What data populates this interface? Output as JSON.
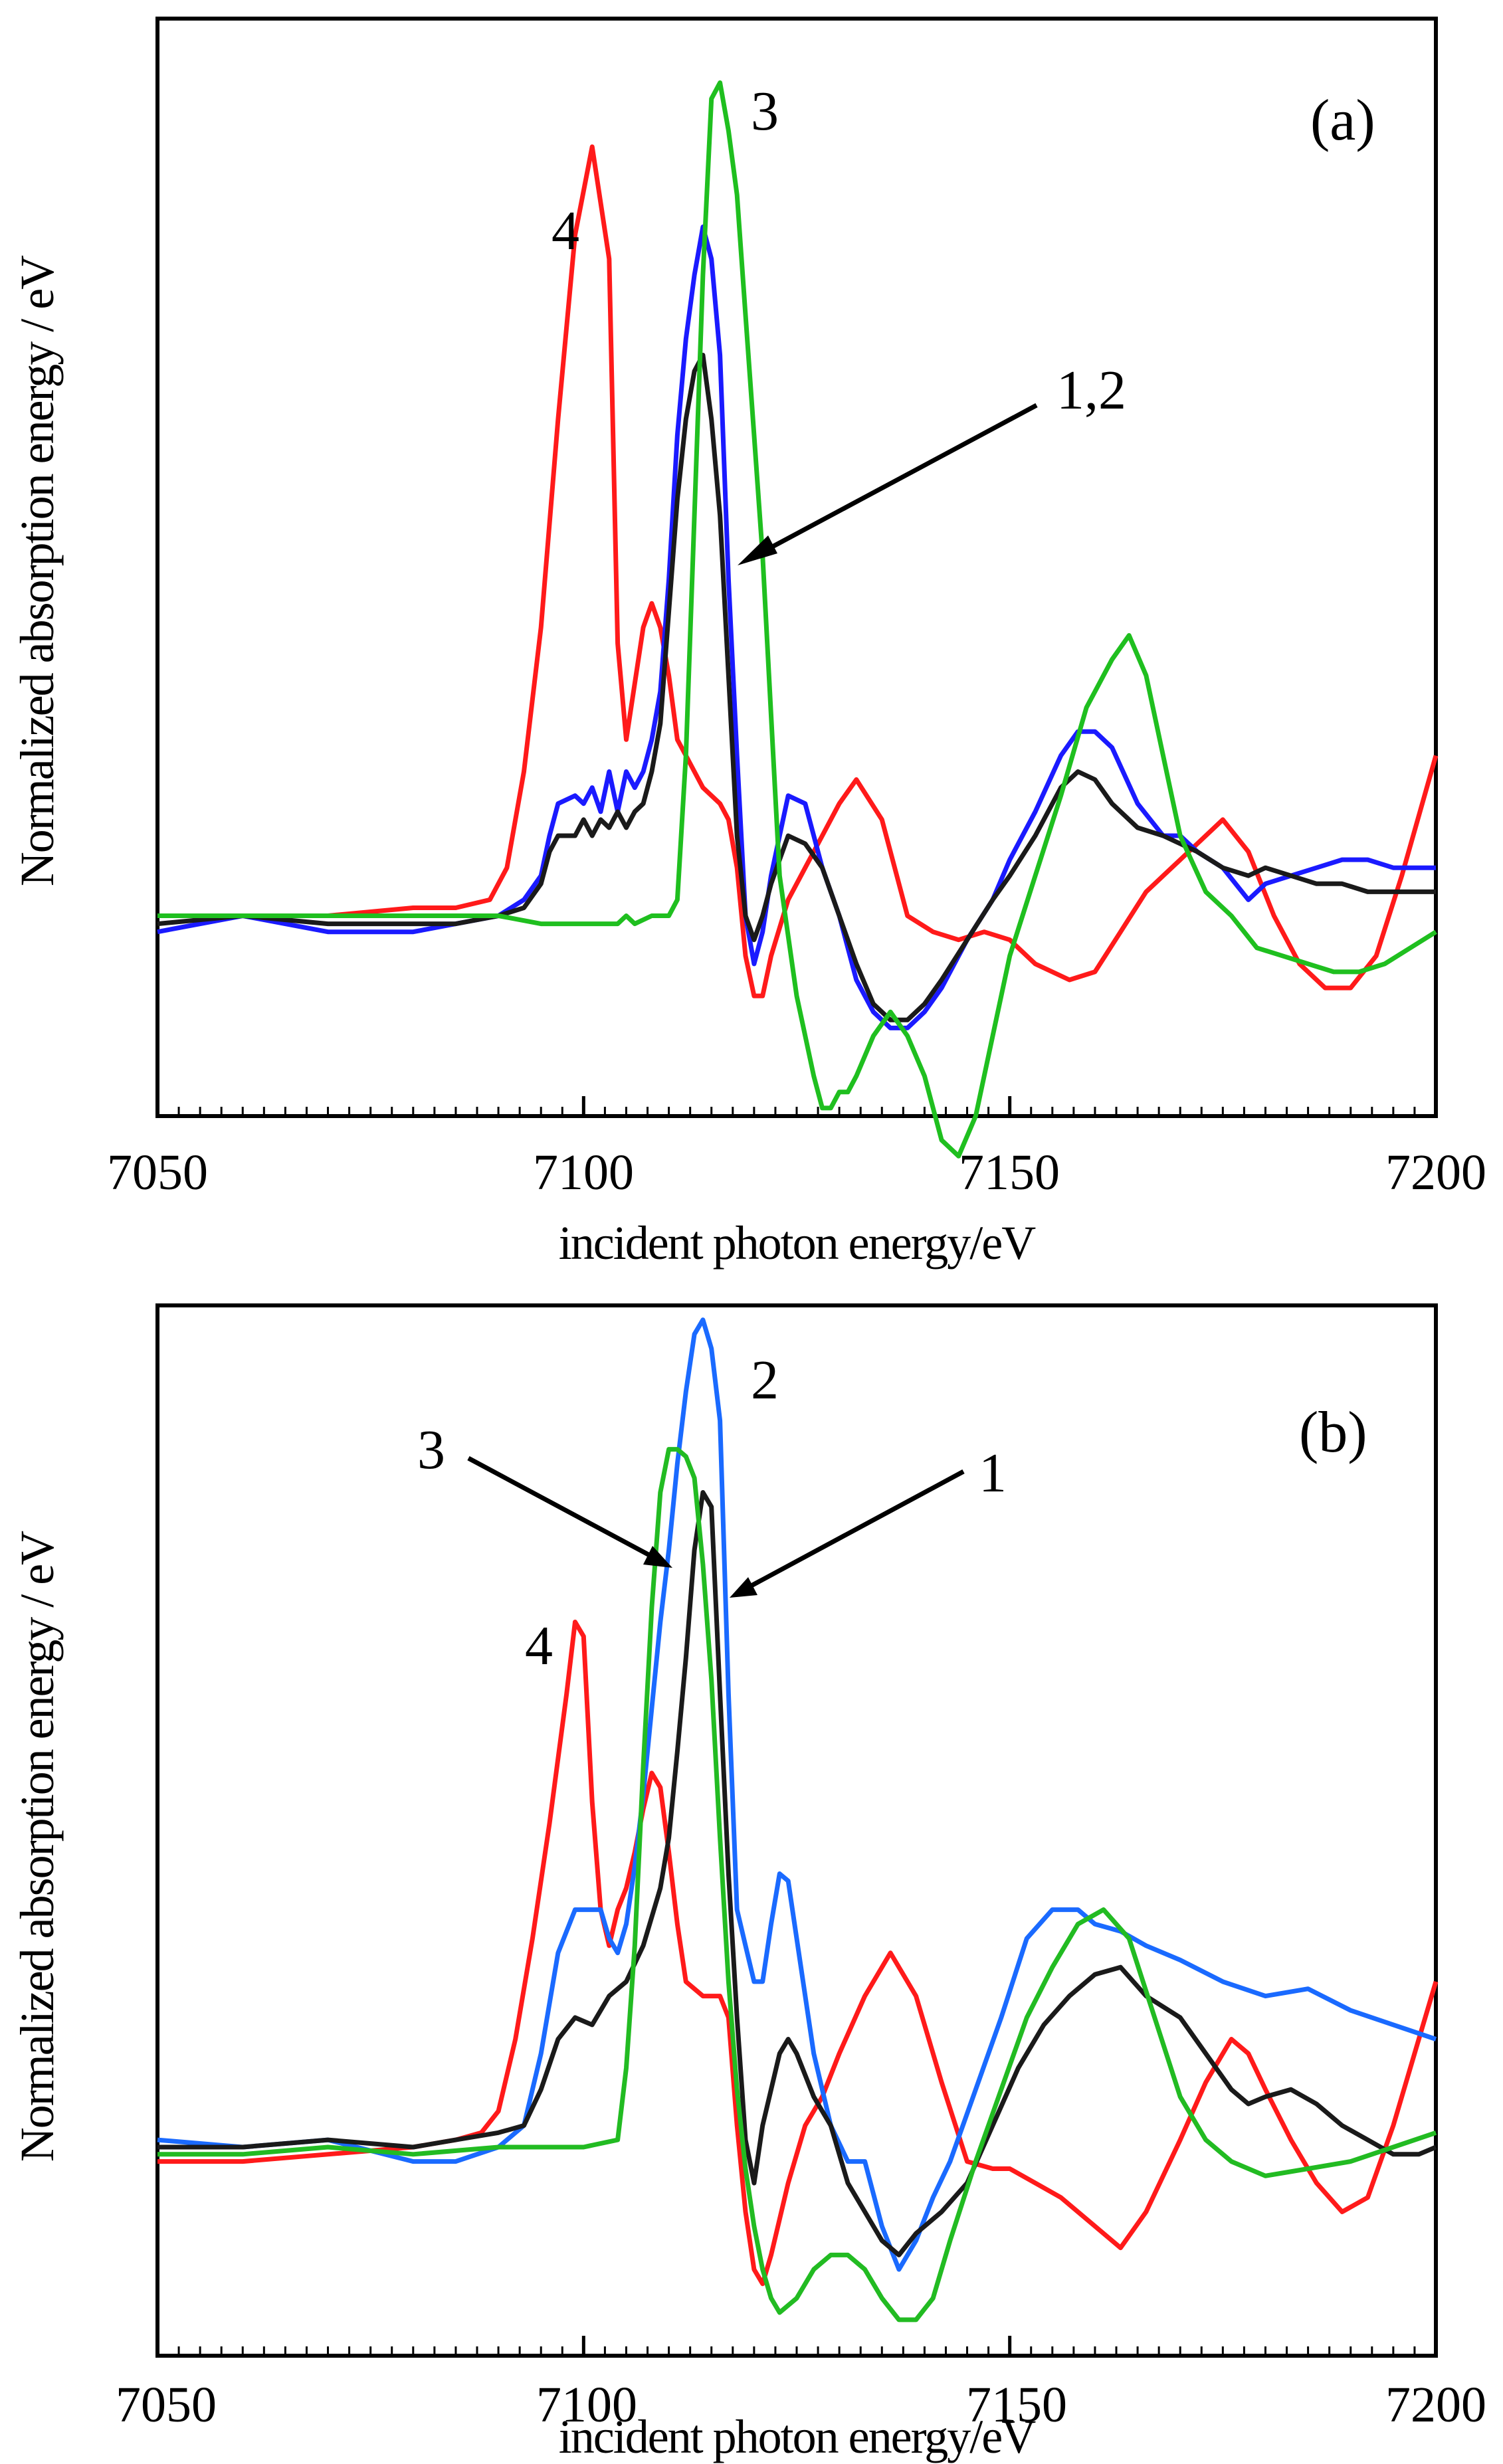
{
  "chart_data": [
    {
      "type": "line",
      "panel": "(a)",
      "xlabel": "incident photon energy/eV",
      "ylabel": "Normalized absorption energy / eV",
      "xlim": [
        7050,
        7200
      ],
      "ylim": [
        -0.25,
        1.12
      ],
      "xticks": [
        7050,
        7100,
        7150,
        7200
      ],
      "series": [
        {
          "name": "4",
          "color": "#ff1a1a",
          "x": [
            7050,
            7060,
            7070,
            7080,
            7085,
            7089,
            7091,
            7093,
            7095,
            7097,
            7099,
            7101,
            7103,
            7104,
            7105,
            7107,
            7108,
            7109,
            7110,
            7111,
            7112,
            7113,
            7114,
            7116,
            7117,
            7118,
            7119,
            7120,
            7121,
            7122,
            7124,
            7126,
            7128,
            7130,
            7132,
            7135,
            7138,
            7141,
            7144,
            7147,
            7150,
            7153,
            7157,
            7160,
            7163,
            7166,
            7169,
            7172,
            7175,
            7178,
            7181,
            7184,
            7187,
            7190,
            7193,
            7196,
            7200
          ],
          "y": [
            0.0,
            0.0,
            0.0,
            0.01,
            0.01,
            0.02,
            0.06,
            0.18,
            0.36,
            0.62,
            0.85,
            0.96,
            0.82,
            0.34,
            0.22,
            0.36,
            0.39,
            0.36,
            0.3,
            0.22,
            0.2,
            0.18,
            0.16,
            0.14,
            0.12,
            0.06,
            -0.05,
            -0.1,
            -0.1,
            -0.05,
            0.02,
            0.06,
            0.1,
            0.14,
            0.17,
            0.12,
            0.0,
            -0.02,
            -0.03,
            -0.02,
            -0.03,
            -0.06,
            -0.08,
            -0.07,
            -0.02,
            0.03,
            0.06,
            0.09,
            0.12,
            0.08,
            0.0,
            -0.06,
            -0.09,
            -0.09,
            -0.05,
            0.05,
            0.2
          ]
        },
        {
          "name": "1",
          "color": "#1a1aff",
          "x": [
            7050,
            7060,
            7070,
            7080,
            7085,
            7090,
            7093,
            7095,
            7096,
            7097,
            7099,
            7100,
            7101,
            7102,
            7103,
            7104,
            7105,
            7106,
            7107,
            7108,
            7109,
            7110,
            7111,
            7112,
            7113,
            7114,
            7115,
            7116,
            7117,
            7118,
            7119,
            7120,
            7121,
            7122,
            7123,
            7124,
            7126,
            7127,
            7128,
            7130,
            7132,
            7134,
            7136,
            7138,
            7140,
            7142,
            7145,
            7148,
            7150,
            7153,
            7156,
            7158,
            7160,
            7162,
            7165,
            7168,
            7170,
            7172,
            7175,
            7178,
            7180,
            7183,
            7186,
            7189,
            7192,
            7195,
            7200
          ],
          "y": [
            -0.02,
            0.0,
            -0.02,
            -0.02,
            -0.01,
            0.0,
            0.02,
            0.05,
            0.1,
            0.14,
            0.15,
            0.14,
            0.16,
            0.13,
            0.18,
            0.13,
            0.18,
            0.16,
            0.18,
            0.22,
            0.28,
            0.42,
            0.6,
            0.72,
            0.8,
            0.86,
            0.82,
            0.7,
            0.42,
            0.2,
            0.0,
            -0.06,
            -0.02,
            0.05,
            0.1,
            0.15,
            0.14,
            0.1,
            0.06,
            0.0,
            -0.08,
            -0.12,
            -0.14,
            -0.14,
            -0.12,
            -0.09,
            -0.03,
            0.02,
            0.07,
            0.13,
            0.2,
            0.23,
            0.23,
            0.21,
            0.14,
            0.1,
            0.1,
            0.08,
            0.06,
            0.02,
            0.04,
            0.05,
            0.06,
            0.07,
            0.07,
            0.06,
            0.06
          ]
        },
        {
          "name": "2",
          "color": "#1a1a1a",
          "x": [
            7050,
            7060,
            7070,
            7080,
            7085,
            7090,
            7093,
            7095,
            7096,
            7097,
            7099,
            7100,
            7101,
            7102,
            7103,
            7104,
            7105,
            7106,
            7107,
            7108,
            7109,
            7110,
            7111,
            7112,
            7113,
            7114,
            7115,
            7116,
            7117,
            7118,
            7119,
            7120,
            7121,
            7122,
            7123,
            7124,
            7126,
            7128,
            7130,
            7132,
            7134,
            7136,
            7138,
            7140,
            7142,
            7145,
            7148,
            7150,
            7153,
            7156,
            7158,
            7160,
            7162,
            7165,
            7168,
            7170,
            7172,
            7175,
            7178,
            7180,
            7183,
            7186,
            7189,
            7192,
            7195,
            7200
          ],
          "y": [
            -0.01,
            0.0,
            -0.01,
            -0.01,
            -0.01,
            0.0,
            0.01,
            0.04,
            0.08,
            0.1,
            0.1,
            0.12,
            0.1,
            0.12,
            0.11,
            0.13,
            0.11,
            0.13,
            0.14,
            0.18,
            0.24,
            0.38,
            0.52,
            0.62,
            0.68,
            0.7,
            0.62,
            0.5,
            0.3,
            0.1,
            0.0,
            -0.03,
            0.0,
            0.04,
            0.07,
            0.1,
            0.09,
            0.06,
            0.0,
            -0.06,
            -0.11,
            -0.13,
            -0.13,
            -0.11,
            -0.08,
            -0.03,
            0.02,
            0.05,
            0.1,
            0.16,
            0.18,
            0.17,
            0.14,
            0.11,
            0.1,
            0.09,
            0.08,
            0.06,
            0.05,
            0.06,
            0.05,
            0.04,
            0.04,
            0.03,
            0.03,
            0.03
          ]
        },
        {
          "name": "3",
          "color": "#1fbf1f",
          "x": [
            7050,
            7060,
            7070,
            7080,
            7090,
            7095,
            7100,
            7104,
            7105,
            7106,
            7108,
            7110,
            7111,
            7112,
            7113,
            7114,
            7115,
            7116,
            7117,
            7118,
            7119,
            7120,
            7121,
            7122,
            7123,
            7125,
            7127,
            7128,
            7129,
            7130,
            7131,
            7132,
            7134,
            7136,
            7138,
            7140,
            7142,
            7144,
            7146,
            7148,
            7150,
            7153,
            7156,
            7159,
            7162,
            7164,
            7166,
            7168,
            7170,
            7173,
            7176,
            7179,
            7182,
            7185,
            7188,
            7191,
            7194,
            7197,
            7200
          ],
          "y": [
            0.0,
            0.0,
            0.0,
            0.0,
            0.0,
            -0.01,
            -0.01,
            -0.01,
            0.0,
            -0.01,
            0.0,
            0.0,
            0.02,
            0.2,
            0.5,
            0.8,
            1.02,
            1.04,
            0.98,
            0.9,
            0.75,
            0.6,
            0.45,
            0.25,
            0.05,
            -0.1,
            -0.2,
            -0.24,
            -0.24,
            -0.22,
            -0.22,
            -0.2,
            -0.15,
            -0.12,
            -0.15,
            -0.2,
            -0.28,
            -0.3,
            -0.25,
            -0.15,
            -0.05,
            0.05,
            0.15,
            0.26,
            0.32,
            0.35,
            0.3,
            0.2,
            0.1,
            0.03,
            0.0,
            -0.04,
            -0.05,
            -0.06,
            -0.07,
            -0.07,
            -0.06,
            -0.04,
            -0.02
          ]
        }
      ],
      "annotations": [
        {
          "text": "3",
          "near": "green peak"
        },
        {
          "text": "4",
          "near": "red peak"
        },
        {
          "text": "1,2",
          "arrow_to": [
            7116,
            0.4
          ]
        }
      ]
    },
    {
      "type": "line",
      "panel": "(b)",
      "xlabel": "incident photon energy/eV",
      "ylabel": "Normalized absorption energy / eV",
      "xlim": [
        7050,
        7200
      ],
      "ylim": [
        -0.32,
        1.14
      ],
      "xticks": [
        7050,
        7100,
        7150,
        7200
      ],
      "series": [
        {
          "name": "4",
          "color": "#ff1a1a",
          "x": [
            7050,
            7060,
            7070,
            7080,
            7085,
            7088,
            7090,
            7092,
            7094,
            7096,
            7098,
            7099,
            7100,
            7101,
            7102,
            7103,
            7104,
            7105,
            7106,
            7107,
            7108,
            7109,
            7110,
            7111,
            7112,
            7114,
            7116,
            7117,
            7118,
            7119,
            7120,
            7121,
            7122,
            7124,
            7126,
            7128,
            7130,
            7133,
            7136,
            7139,
            7142,
            7145,
            7148,
            7150,
            7153,
            7156,
            7160,
            7163,
            7166,
            7170,
            7173,
            7176,
            7178,
            7180,
            7183,
            7186,
            7189,
            7192,
            7195,
            7198,
            7200
          ],
          "y": [
            -0.05,
            -0.05,
            -0.04,
            -0.03,
            -0.02,
            -0.01,
            0.02,
            0.12,
            0.26,
            0.42,
            0.6,
            0.7,
            0.68,
            0.45,
            0.3,
            0.25,
            0.3,
            0.33,
            0.38,
            0.44,
            0.49,
            0.47,
            0.38,
            0.28,
            0.2,
            0.18,
            0.18,
            0.15,
            0.0,
            -0.12,
            -0.2,
            -0.22,
            -0.18,
            -0.08,
            0.0,
            0.04,
            0.1,
            0.18,
            0.24,
            0.18,
            0.06,
            -0.05,
            -0.06,
            -0.06,
            -0.08,
            -0.1,
            -0.14,
            -0.17,
            -0.12,
            -0.02,
            0.06,
            0.12,
            0.1,
            0.05,
            -0.02,
            -0.08,
            -0.12,
            -0.1,
            0.0,
            0.12,
            0.2
          ]
        },
        {
          "name": "2",
          "color": "#1a6aff",
          "x": [
            7050,
            7060,
            7070,
            7080,
            7085,
            7090,
            7093,
            7095,
            7097,
            7099,
            7100,
            7102,
            7103,
            7104,
            7105,
            7106,
            7107,
            7108,
            7109,
            7110,
            7111,
            7112,
            7113,
            7114,
            7115,
            7116,
            7117,
            7118,
            7119,
            7120,
            7121,
            7122,
            7123,
            7124,
            7125,
            7127,
            7129,
            7131,
            7133,
            7135,
            7137,
            7139,
            7141,
            7143,
            7146,
            7149,
            7152,
            7155,
            7158,
            7160,
            7163,
            7166,
            7170,
            7175,
            7180,
            7185,
            7190,
            7195,
            7200
          ],
          "y": [
            -0.02,
            -0.03,
            -0.02,
            -0.05,
            -0.05,
            -0.03,
            0.0,
            0.1,
            0.24,
            0.3,
            0.3,
            0.3,
            0.26,
            0.24,
            0.28,
            0.36,
            0.46,
            0.58,
            0.7,
            0.8,
            0.92,
            1.02,
            1.1,
            1.12,
            1.08,
            0.98,
            0.6,
            0.3,
            0.25,
            0.2,
            0.2,
            0.28,
            0.35,
            0.34,
            0.26,
            0.1,
            0.0,
            -0.05,
            -0.05,
            -0.14,
            -0.2,
            -0.16,
            -0.1,
            -0.05,
            0.05,
            0.15,
            0.26,
            0.3,
            0.3,
            0.28,
            0.27,
            0.25,
            0.23,
            0.2,
            0.18,
            0.19,
            0.16,
            0.14,
            0.12
          ]
        },
        {
          "name": "1",
          "color": "#1a1a1a",
          "x": [
            7050,
            7060,
            7070,
            7080,
            7085,
            7090,
            7093,
            7095,
            7097,
            7099,
            7101,
            7103,
            7105,
            7107,
            7109,
            7110,
            7111,
            7112,
            7113,
            7114,
            7115,
            7116,
            7117,
            7118,
            7119,
            7120,
            7121,
            7122,
            7123,
            7124,
            7125,
            7127,
            7129,
            7131,
            7133,
            7135,
            7137,
            7139,
            7142,
            7145,
            7148,
            7151,
            7154,
            7157,
            7160,
            7163,
            7166,
            7170,
            7173,
            7176,
            7178,
            7180,
            7183,
            7186,
            7189,
            7192,
            7195,
            7198,
            7200
          ],
          "y": [
            -0.03,
            -0.03,
            -0.02,
            -0.03,
            -0.02,
            -0.01,
            0.0,
            0.05,
            0.12,
            0.15,
            0.14,
            0.18,
            0.2,
            0.25,
            0.33,
            0.4,
            0.52,
            0.65,
            0.8,
            0.88,
            0.86,
            0.6,
            0.35,
            0.15,
            -0.02,
            -0.08,
            0.0,
            0.05,
            0.1,
            0.12,
            0.1,
            0.04,
            0.0,
            -0.08,
            -0.12,
            -0.16,
            -0.18,
            -0.15,
            -0.12,
            -0.08,
            0.0,
            0.08,
            0.14,
            0.18,
            0.21,
            0.22,
            0.18,
            0.15,
            0.1,
            0.05,
            0.03,
            0.04,
            0.05,
            0.03,
            0.0,
            -0.02,
            -0.04,
            -0.04,
            -0.03
          ]
        },
        {
          "name": "3",
          "color": "#22bb22",
          "x": [
            7050,
            7060,
            7070,
            7080,
            7090,
            7095,
            7100,
            7104,
            7105,
            7106,
            7107,
            7108,
            7109,
            7110,
            7111,
            7112,
            7113,
            7114,
            7115,
            7116,
            7117,
            7118,
            7119,
            7120,
            7121,
            7122,
            7123,
            7125,
            7127,
            7129,
            7131,
            7133,
            7135,
            7137,
            7139,
            7141,
            7143,
            7146,
            7149,
            7152,
            7155,
            7158,
            7161,
            7164,
            7167,
            7170,
            7173,
            7176,
            7180,
            7185,
            7190,
            7195,
            7200
          ],
          "y": [
            -0.04,
            -0.04,
            -0.03,
            -0.04,
            -0.03,
            -0.03,
            -0.03,
            -0.02,
            0.08,
            0.25,
            0.5,
            0.72,
            0.88,
            0.94,
            0.94,
            0.93,
            0.9,
            0.78,
            0.62,
            0.4,
            0.2,
            0.05,
            -0.06,
            -0.14,
            -0.2,
            -0.24,
            -0.26,
            -0.24,
            -0.2,
            -0.18,
            -0.18,
            -0.2,
            -0.24,
            -0.27,
            -0.27,
            -0.24,
            -0.16,
            -0.05,
            0.05,
            0.15,
            0.22,
            0.28,
            0.3,
            0.26,
            0.15,
            0.04,
            -0.02,
            -0.05,
            -0.07,
            -0.06,
            -0.05,
            -0.03,
            -0.01
          ]
        }
      ],
      "annotations": [
        {
          "text": "2",
          "near": "blue peak"
        },
        {
          "text": "3",
          "arrow_to": [
            7111,
            0.88
          ]
        },
        {
          "text": "1",
          "arrow_to": [
            7117,
            0.78
          ]
        },
        {
          "text": "4",
          "near": "red peak"
        }
      ]
    }
  ]
}
